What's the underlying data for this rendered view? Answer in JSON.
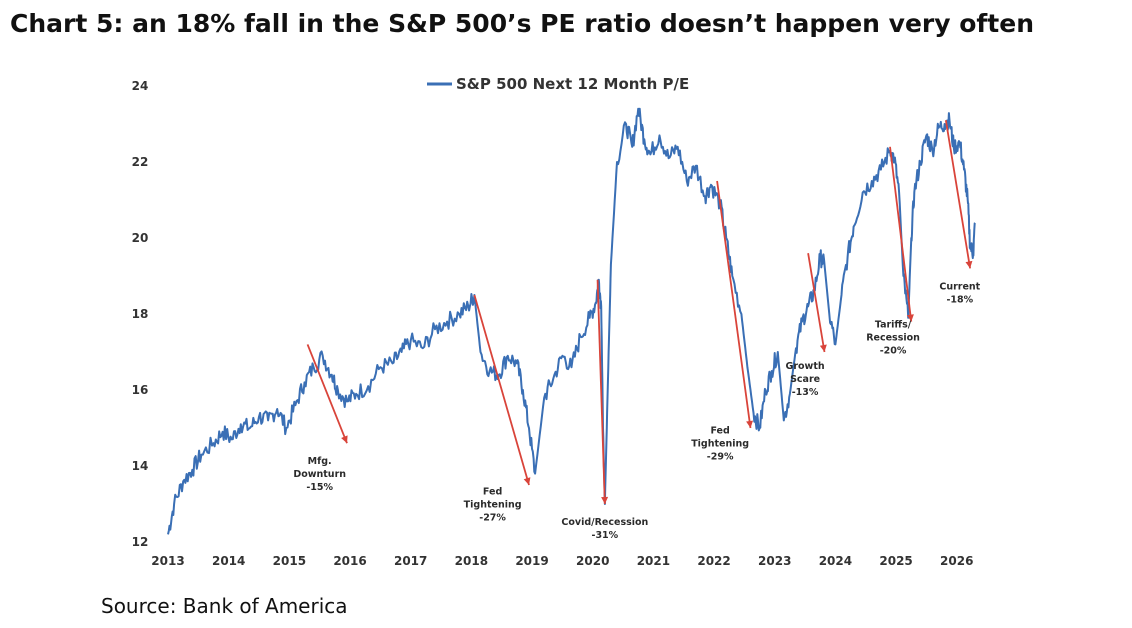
{
  "heading": "Chart 5: an 18% fall in the S&P 500’s PE ratio doesn’t happen very often",
  "source": "Source: Bank of America",
  "colors": {
    "line": "#3a6fb5",
    "arrow": "#d9443a"
  },
  "chart_data": {
    "type": "line",
    "legend": {
      "label": "S&P 500 Next 12 Month P/E",
      "placement": "top-center"
    },
    "grid": false,
    "x_ticks": [
      "2013",
      "2014",
      "2015",
      "2016",
      "2017",
      "2018",
      "2019",
      "2020",
      "2021",
      "2022",
      "2023",
      "2024",
      "2025",
      "2026"
    ],
    "y_ticks": [
      "12",
      "14",
      "16",
      "18",
      "20",
      "22",
      "24"
    ],
    "xlim": [
      2013,
      2026.35
    ],
    "ylim": [
      12,
      24
    ],
    "series": [
      {
        "name": "S&P 500 Next 12 Month P/E",
        "x": [
          2013.0,
          2013.1,
          2013.25,
          2013.4,
          2013.55,
          2013.75,
          2013.9,
          2014.05,
          2014.2,
          2014.35,
          2014.5,
          2014.65,
          2014.8,
          2014.95,
          2015.1,
          2015.25,
          2015.4,
          2015.55,
          2015.7,
          2015.8,
          2015.95,
          2016.1,
          2016.3,
          2016.5,
          2016.7,
          2016.85,
          2017.0,
          2017.2,
          2017.4,
          2017.6,
          2017.8,
          2017.95,
          2018.05,
          2018.15,
          2018.3,
          2018.45,
          2018.6,
          2018.75,
          2018.85,
          2018.95,
          2019.05,
          2019.2,
          2019.35,
          2019.5,
          2019.65,
          2019.8,
          2019.95,
          2020.05,
          2020.1,
          2020.14,
          2020.17,
          2020.2,
          2020.25,
          2020.3,
          2020.4,
          2020.55,
          2020.65,
          2020.75,
          2020.85,
          2020.95,
          2021.1,
          2021.25,
          2021.4,
          2021.55,
          2021.7,
          2021.85,
          2021.95,
          2022.1,
          2022.2,
          2022.3,
          2022.45,
          2022.55,
          2022.65,
          2022.75,
          2022.85,
          2022.95,
          2023.05,
          2023.15,
          2023.25,
          2023.35,
          2023.45,
          2023.55,
          2023.65,
          2023.75,
          2023.82,
          2023.9,
          2024.0,
          2024.1,
          2024.2,
          2024.3,
          2024.45,
          2024.6,
          2024.75,
          2024.9,
          2024.97,
          2025.05,
          2025.12,
          2025.2,
          2025.25,
          2025.3,
          2025.4,
          2025.5,
          2025.6,
          2025.7,
          2025.8,
          2025.88,
          2025.95,
          2026.05,
          2026.12,
          2026.18,
          2026.22,
          2026.27,
          2026.3
        ],
        "y": [
          12.2,
          13.0,
          13.6,
          13.9,
          14.3,
          14.6,
          14.9,
          14.7,
          15.1,
          15.0,
          15.3,
          15.2,
          15.5,
          15.0,
          15.6,
          16.2,
          16.6,
          16.9,
          16.4,
          16.0,
          15.7,
          15.9,
          16.1,
          16.6,
          16.7,
          17.0,
          17.3,
          17.1,
          17.6,
          17.8,
          18.0,
          18.2,
          18.5,
          17.0,
          16.5,
          16.4,
          16.9,
          16.7,
          16.0,
          15.0,
          13.8,
          15.8,
          16.3,
          16.9,
          16.6,
          17.4,
          17.9,
          18.3,
          18.9,
          18.2,
          15.0,
          13.0,
          16.2,
          19.3,
          22.0,
          23.0,
          22.4,
          23.4,
          22.6,
          22.2,
          22.7,
          22.1,
          22.4,
          21.5,
          21.9,
          21.1,
          21.4,
          20.9,
          20.0,
          19.0,
          18.0,
          16.6,
          15.4,
          15.0,
          16.0,
          16.5,
          17.0,
          15.2,
          15.9,
          17.1,
          17.8,
          18.2,
          18.6,
          19.5,
          19.3,
          18.0,
          17.2,
          18.5,
          19.5,
          20.3,
          21.2,
          21.5,
          21.8,
          22.3,
          22.1,
          21.2,
          19.0,
          17.9,
          20.0,
          21.2,
          22.0,
          22.7,
          22.3,
          22.9,
          23.0,
          23.1,
          22.4,
          22.5,
          21.8,
          21.0,
          19.8,
          19.6,
          20.4
        ]
      }
    ],
    "annotations": [
      {
        "id": "mfg",
        "lines": [
          "Mfg.",
          "Downturn",
          "-15%"
        ],
        "from": [
          2015.3,
          17.2
        ],
        "to": [
          2015.95,
          14.6
        ],
        "label_at": [
          2015.5,
          14.05
        ]
      },
      {
        "id": "fed1",
        "lines": [
          "Fed",
          "Tightening",
          "-27%"
        ],
        "from": [
          2018.05,
          18.5
        ],
        "to": [
          2018.95,
          13.5
        ],
        "label_at": [
          2018.35,
          13.25
        ]
      },
      {
        "id": "covid",
        "lines": [
          "Covid/Recession",
          "-31%"
        ],
        "from": [
          2020.08,
          18.9
        ],
        "to": [
          2020.2,
          13.0
        ],
        "label_at": [
          2020.2,
          12.45
        ]
      },
      {
        "id": "fed2",
        "lines": [
          "Fed",
          "Tightening",
          "-29%"
        ],
        "from": [
          2022.05,
          21.5
        ],
        "to": [
          2022.6,
          15.0
        ],
        "label_at": [
          2022.1,
          14.85
        ]
      },
      {
        "id": "growth",
        "lines": [
          "Growth",
          "Scare",
          "-13%"
        ],
        "from": [
          2023.55,
          19.6
        ],
        "to": [
          2023.82,
          17.0
        ],
        "label_at": [
          2023.5,
          16.55
        ]
      },
      {
        "id": "tariffs",
        "lines": [
          "Tariffs/",
          "Recession",
          "-20%"
        ],
        "from": [
          2024.9,
          22.4
        ],
        "to": [
          2025.25,
          17.8
        ],
        "label_at": [
          2024.95,
          17.65
        ]
      },
      {
        "id": "current",
        "lines": [
          "Current",
          "-18%"
        ],
        "from": [
          2025.82,
          23.1
        ],
        "to": [
          2026.22,
          19.2
        ],
        "label_at": [
          2026.05,
          18.65
        ]
      }
    ]
  }
}
